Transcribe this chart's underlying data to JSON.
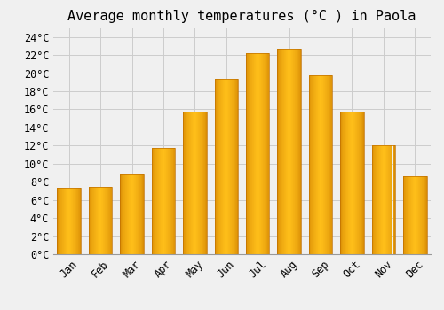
{
  "title": "Average monthly temperatures (°C ) in Paola",
  "months": [
    "Jan",
    "Feb",
    "Mar",
    "Apr",
    "May",
    "Jun",
    "Jul",
    "Aug",
    "Sep",
    "Oct",
    "Nov",
    "Dec"
  ],
  "temperatures": [
    7.3,
    7.4,
    8.8,
    11.7,
    15.8,
    19.4,
    22.2,
    22.7,
    19.8,
    15.8,
    12.0,
    8.6
  ],
  "bar_color_main": "#FFC020",
  "bar_color_left": "#E89000",
  "bar_color_right": "#E89000",
  "background_color": "#f0f0f0",
  "grid_color": "#cccccc",
  "ylim": [
    0,
    25
  ],
  "yticks": [
    0,
    2,
    4,
    6,
    8,
    10,
    12,
    14,
    16,
    18,
    20,
    22,
    24
  ],
  "title_fontsize": 11,
  "tick_fontsize": 8.5,
  "bar_width": 0.75
}
